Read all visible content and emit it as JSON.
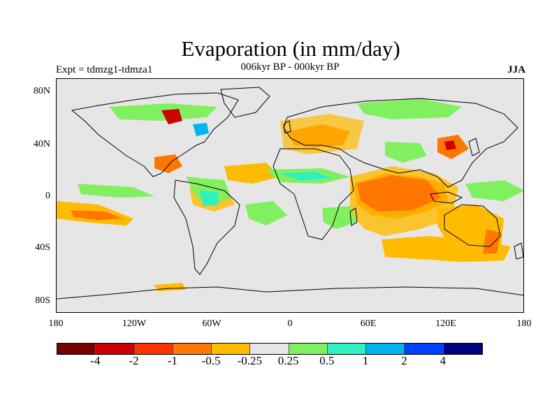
{
  "title": "Evaporation (in mm/day)",
  "experiment": "Expt = tdmzg1-tdmza1",
  "period": "006kyr BP - 000kyr BP",
  "season": "JJA",
  "map": {
    "lat_ticks": [
      "80N",
      "40N",
      "0",
      "40S",
      "80S"
    ],
    "lon_ticks": [
      "180",
      "120W",
      "60W",
      "0",
      "60E",
      "120E",
      "180"
    ],
    "background": "#e6e6e6"
  },
  "colorbar": {
    "colors": [
      "#7a0000",
      "#cc0000",
      "#ff3300",
      "#ff7700",
      "#ffbb00",
      "#e6e6e6",
      "#80f060",
      "#30f0c0",
      "#00b4f0",
      "#0040ff",
      "#000080"
    ],
    "labels": [
      "-4",
      "-2",
      "-1",
      "-0.5",
      "-0.25",
      "0.25",
      "0.5",
      "1",
      "2",
      "4"
    ]
  }
}
